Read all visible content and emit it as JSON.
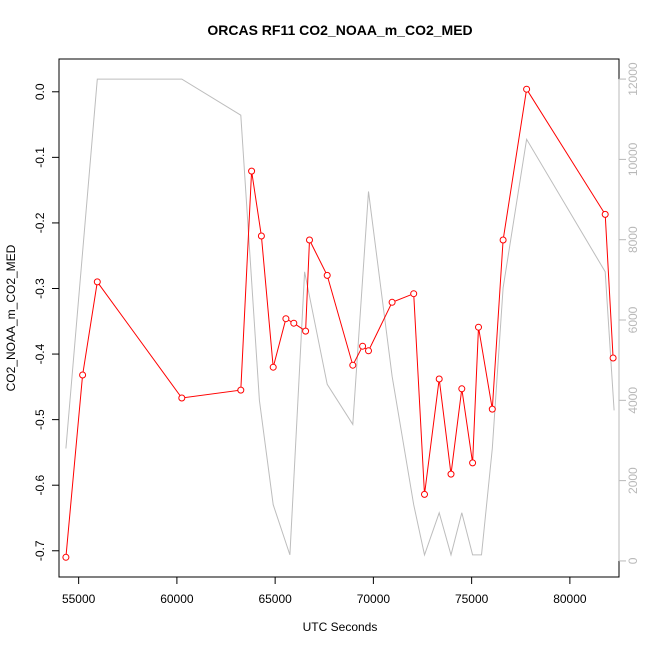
{
  "chart_data": {
    "type": "line",
    "title": "ORCAS RF11 CO2_NOAA_m_CO2_MED",
    "xlabel": "UTC Seconds",
    "ylabel": "CO2_NOAA_m_CO2_MED",
    "xlim": [
      54000,
      82500
    ],
    "ylim": [
      -0.74,
      0.05
    ],
    "y2lim": [
      -400,
      12500
    ],
    "x_ticks": [
      55000,
      60000,
      65000,
      70000,
      75000,
      80000
    ],
    "x_tick_labels": [
      "55000",
      "60000",
      "65000",
      "70000",
      "75000",
      "80000"
    ],
    "y_ticks": [
      0.0,
      -0.1,
      -0.2,
      -0.3,
      -0.4,
      -0.5,
      -0.6,
      -0.7
    ],
    "y_tick_labels": [
      "0.0",
      "-0.1",
      "-0.2",
      "-0.3",
      "-0.4",
      "-0.5",
      "-0.6",
      "-0.7"
    ],
    "y2_ticks": [
      0,
      2000,
      4000,
      6000,
      8000,
      10000,
      12000
    ],
    "y2_tick_labels": [
      "0",
      "2000",
      "4000",
      "6000",
      "8000",
      "10000",
      "12000"
    ],
    "series": [
      {
        "axis": "left",
        "color": "#ff0000",
        "markers": true,
        "x": [
          54350,
          55200,
          55950,
          60250,
          63250,
          63800,
          64300,
          64900,
          65550,
          65950,
          66550,
          66750,
          67650,
          68950,
          69450,
          69750,
          70950,
          72050,
          72600,
          73350,
          73950,
          74500,
          75050,
          75350,
          76050,
          76600,
          77800,
          81800,
          82200
        ],
        "y": [
          -0.71,
          -0.432,
          -0.29,
          -0.467,
          -0.455,
          -0.121,
          -0.22,
          -0.42,
          -0.346,
          -0.353,
          -0.365,
          -0.226,
          -0.28,
          -0.417,
          -0.388,
          -0.395,
          -0.321,
          -0.308,
          -0.614,
          -0.438,
          -0.583,
          -0.453,
          -0.566,
          -0.359,
          -0.484,
          -0.226,
          0.004,
          -0.187,
          -0.406
        ]
      },
      {
        "axis": "right",
        "color": "#bdbdbd",
        "markers": false,
        "x": [
          54350,
          55950,
          60250,
          63250,
          64200,
          64900,
          65750,
          66500,
          67650,
          68950,
          69750,
          70950,
          72050,
          72600,
          73350,
          73950,
          74500,
          75050,
          75500,
          76050,
          76600,
          77800,
          81800,
          82250
        ],
        "y": [
          2800,
          12000,
          12000,
          11100,
          4000,
          1400,
          150,
          7200,
          4400,
          3400,
          9200,
          4600,
          1400,
          150,
          1200,
          150,
          1200,
          150,
          150,
          2800,
          6800,
          10500,
          7200,
          3750
        ]
      }
    ]
  }
}
